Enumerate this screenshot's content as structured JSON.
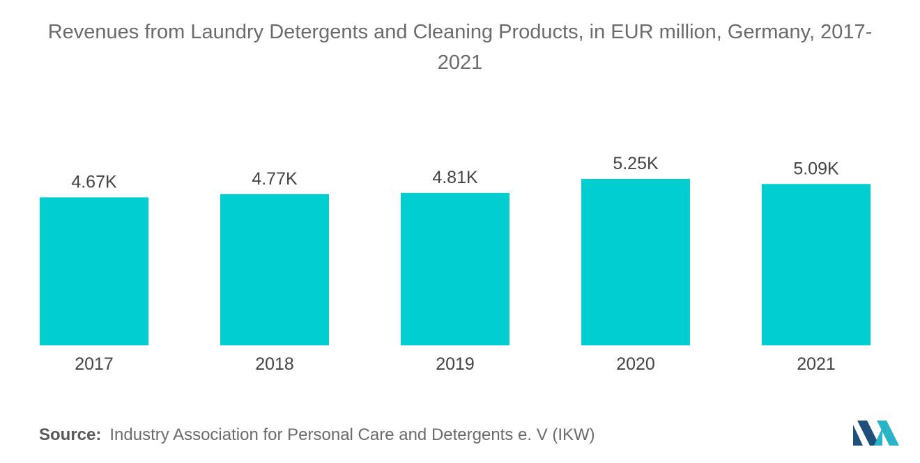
{
  "title": "Revenues from Laundry Detergents and Cleaning Products, in EUR million, Germany, 2017-2021",
  "source": {
    "label": "Source:",
    "text": "Industry Association for Personal Care and Detergents e. V (IKW)"
  },
  "colors": {
    "bar": "#00CED1",
    "logo_dark": "#1f4f7a",
    "logo_light": "#2bb3c8"
  },
  "logo": {
    "icon": "mordor-intelligence-logo-icon"
  },
  "chart_data": {
    "type": "bar",
    "title": "Revenues from Laundry Detergents and Cleaning Products, in EUR million, Germany, 2017-2021",
    "categories": [
      "2017",
      "2018",
      "2019",
      "2020",
      "2021"
    ],
    "values": [
      4670,
      4770,
      4810,
      5250,
      5090
    ],
    "data_labels": [
      "4.67K",
      "4.77K",
      "4.81K",
      "5.25K",
      "5.09K"
    ],
    "xlabel": "",
    "ylabel": "",
    "ylim": [
      0,
      5250
    ],
    "grid": false,
    "legend": "none"
  }
}
